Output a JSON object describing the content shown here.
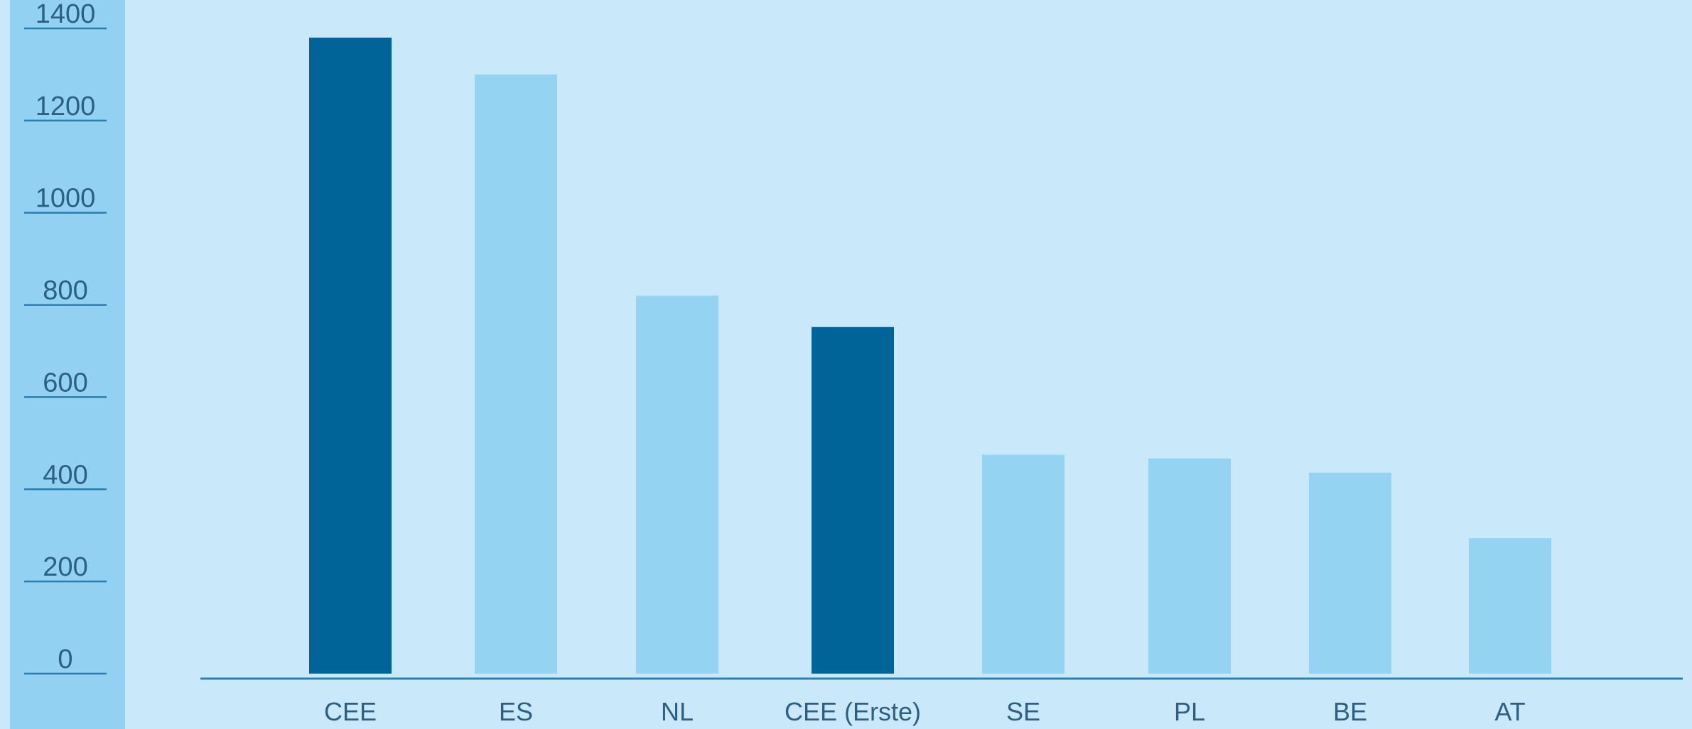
{
  "chart_data": {
    "type": "bar",
    "title": "",
    "xlabel": "",
    "ylabel": "",
    "ylim": [
      0,
      1400
    ],
    "yticks": [
      0,
      200,
      400,
      600,
      800,
      1000,
      1200,
      1400
    ],
    "yticks_text": [
      "0",
      "200",
      "400",
      "600",
      "800",
      "1000",
      "1200",
      "1400"
    ],
    "categories": [
      "CEE",
      "ES",
      "NL",
      "CEE (Erste)",
      "SE",
      "PL",
      "BE",
      "AT"
    ],
    "values": [
      1380,
      1300,
      820,
      752,
      475,
      467,
      436,
      294
    ],
    "grid": false,
    "legend": "none",
    "colors": {
      "background": "#c9e9fb",
      "axis_strip": "#92d1f2",
      "bar_highlight": "#006499",
      "bar_default": "#94d3f2",
      "axis": "#2a7eb0",
      "text": "#2b5f86"
    },
    "highlighted": [
      "CEE",
      "CEE (Erste)"
    ]
  }
}
